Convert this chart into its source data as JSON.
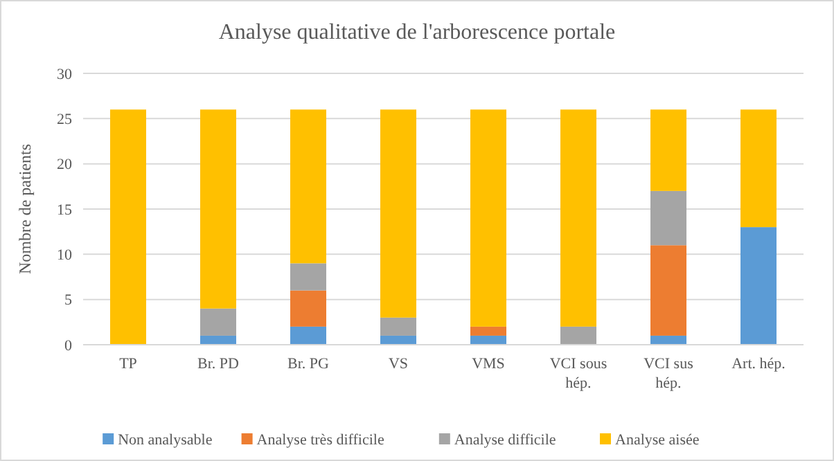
{
  "chart_data": {
    "type": "bar",
    "title": "Analyse qualitative de l'arborescence portale",
    "ylabel": "Nombre de patients",
    "categories": [
      "TP",
      "Br. PD",
      "Br. PG",
      "VS",
      "VMS",
      "VCI sous hép.",
      "VCI sus hép.",
      "Art. hép."
    ],
    "series": [
      {
        "name": "Non analysable",
        "color": "#5b9bd5",
        "values": [
          0,
          1,
          2,
          1,
          1,
          0,
          1,
          13
        ]
      },
      {
        "name": "Analyse très difficile",
        "color": "#ed7d31",
        "values": [
          0,
          0,
          4,
          0,
          1,
          0,
          10,
          0
        ]
      },
      {
        "name": "Analyse difficile",
        "color": "#a5a5a5",
        "values": [
          0,
          3,
          3,
          2,
          0,
          2,
          6,
          0
        ]
      },
      {
        "name": "Analyse aisée",
        "color": "#ffc000",
        "values": [
          26,
          22,
          17,
          23,
          24,
          24,
          9,
          13
        ]
      }
    ],
    "stacked": true,
    "ylim": [
      0,
      30
    ],
    "yticks": [
      0,
      5,
      10,
      15,
      20,
      25,
      30
    ],
    "grid": "y",
    "legend": "bottom"
  }
}
